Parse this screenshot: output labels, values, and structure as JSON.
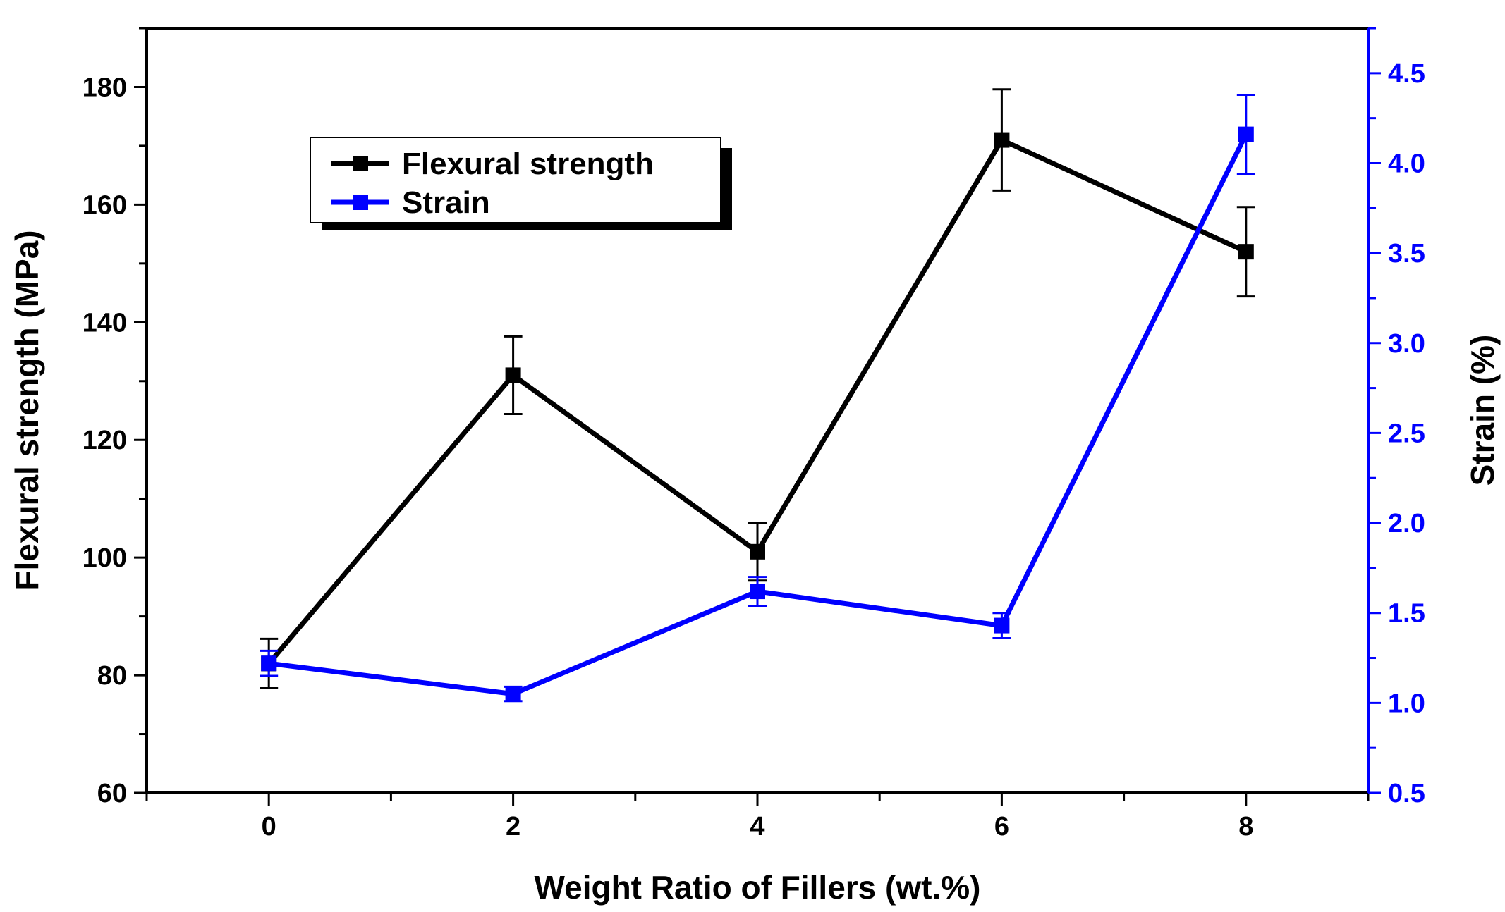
{
  "chart_data": {
    "type": "line",
    "title": "",
    "xlabel": "Weight Ratio of Fillers (wt.%)",
    "ylabel_left": "Flexural strength (MPa)",
    "ylabel_right": "Strain (%)",
    "xlim": [
      -1,
      9
    ],
    "ylim_left": [
      60,
      190
    ],
    "ylim_right": [
      0.5,
      4.75
    ],
    "x_ticks": [
      0,
      2,
      4,
      6,
      8
    ],
    "x_tick_labels": [
      "0",
      "2",
      "4",
      "6",
      "8"
    ],
    "y_left_ticks": [
      60,
      80,
      100,
      120,
      140,
      160,
      180
    ],
    "y_left_tick_labels": [
      "60",
      "80",
      "100",
      "120",
      "140",
      "160",
      "180"
    ],
    "y_right_ticks": [
      0.5,
      1.0,
      1.5,
      2.0,
      2.5,
      3.0,
      3.5,
      4.0,
      4.5
    ],
    "y_right_tick_labels": [
      "0.5",
      "1.0",
      "1.5",
      "2.0",
      "2.5",
      "3.0",
      "3.5",
      "4.0",
      "4.5"
    ],
    "x": [
      0,
      2,
      4,
      6,
      8
    ],
    "series": [
      {
        "name": "Flexural strength",
        "axis": "left",
        "color": "#000000",
        "values": [
          82,
          131,
          101,
          171,
          152
        ],
        "error": [
          4.2,
          6.6,
          4.9,
          8.6,
          7.6
        ]
      },
      {
        "name": "Strain",
        "axis": "right",
        "color": "#0000ff",
        "values": [
          1.22,
          1.05,
          1.62,
          1.43,
          4.16
        ],
        "error": [
          0.07,
          0.04,
          0.08,
          0.07,
          0.22
        ]
      }
    ],
    "legend": {
      "position": "top-left",
      "entries": [
        "Flexural strength",
        "Strain"
      ]
    },
    "grid": false
  }
}
